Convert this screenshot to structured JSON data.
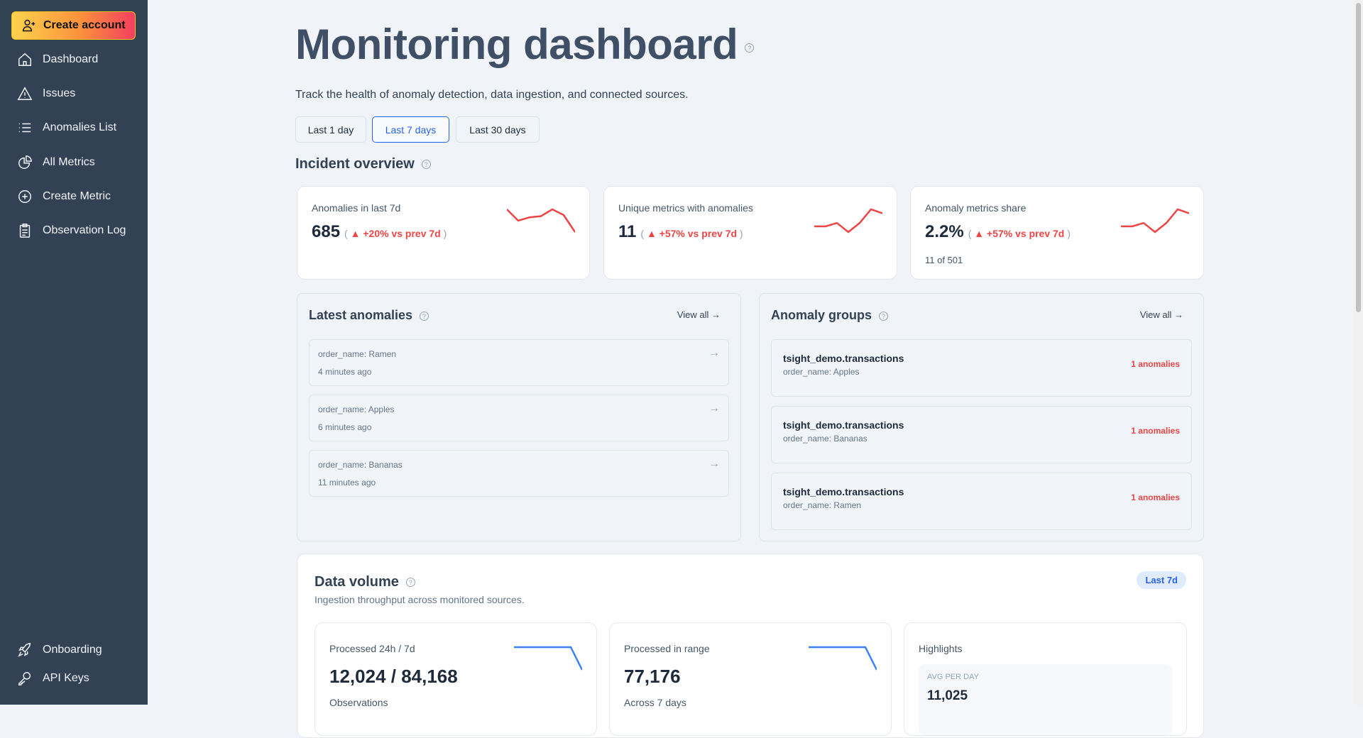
{
  "sidebar": {
    "create_account": "Create account",
    "items": [
      {
        "label": "Dashboard",
        "icon": "home-icon"
      },
      {
        "label": "Issues",
        "icon": "warning-icon"
      },
      {
        "label": "Anomalies List",
        "icon": "list-icon"
      },
      {
        "label": "All Metrics",
        "icon": "pie-chart-icon"
      },
      {
        "label": "Create Metric",
        "icon": "plus-circle-icon"
      },
      {
        "label": "Observation Log",
        "icon": "clipboard-icon"
      }
    ],
    "bottom": [
      {
        "label": "Onboarding",
        "icon": "rocket-icon"
      },
      {
        "label": "API Keys",
        "icon": "key-icon"
      }
    ]
  },
  "header": {
    "title": "Monitoring dashboard",
    "subtitle": "Track the health of anomaly detection, data ingestion, and connected sources.",
    "ranges": [
      "Last 1 day",
      "Last 7 days",
      "Last 30 days"
    ],
    "selected_range": "Last 7 days"
  },
  "incident": {
    "title": "Incident overview",
    "cards": [
      {
        "label": "Anomalies in last 7d",
        "value": "685",
        "change": "▲ +20% vs prev 7d",
        "extra": "",
        "spark": [
          5,
          3,
          3.6,
          3.8,
          5,
          4,
          1
        ]
      },
      {
        "label": "Unique metrics with anomalies",
        "value": "11",
        "change": "▲ +57% vs prev 7d",
        "extra": "",
        "spark": [
          2,
          2,
          2.6,
          1,
          2.6,
          5,
          4.3
        ]
      },
      {
        "label": "Anomaly metrics share",
        "value": "2.2%",
        "change": "▲ +57% vs prev 7d",
        "extra": "11 of 501",
        "spark": [
          2,
          2,
          2.6,
          1,
          2.6,
          5,
          4.3
        ]
      }
    ]
  },
  "latest": {
    "title": "Latest anomalies",
    "view_all": "View all →",
    "items": [
      {
        "name": "order_name: Ramen",
        "time": "4 minutes ago"
      },
      {
        "name": "order_name: Apples",
        "time": "6 minutes ago"
      },
      {
        "name": "order_name: Bananas",
        "time": "11 minutes ago"
      }
    ]
  },
  "groups": {
    "title": "Anomaly groups",
    "view_all": "View all →",
    "items": [
      {
        "table": "tsight_demo.transactions",
        "filter": "order_name: Apples",
        "count": "1 anomalies"
      },
      {
        "table": "tsight_demo.transactions",
        "filter": "order_name: Bananas",
        "count": "1 anomalies"
      },
      {
        "table": "tsight_demo.transactions",
        "filter": "order_name: Ramen",
        "count": "1 anomalies"
      }
    ]
  },
  "volume": {
    "title": "Data volume",
    "subtitle": "Ingestion throughput across monitored sources.",
    "badge": "Last 7d",
    "cards": [
      {
        "label": "Processed 24h / 7d",
        "value": "12,024 / 84,168",
        "caption": "Observations",
        "spark": [
          5,
          5,
          5,
          5,
          5,
          5,
          1
        ]
      },
      {
        "label": "Processed in range",
        "value": "77,176",
        "caption": "Across 7 days",
        "spark": [
          5,
          5,
          5,
          5,
          5,
          5,
          1
        ]
      }
    ],
    "highlights": {
      "label": "Highlights",
      "stat_label": "AVG PER DAY",
      "stat_value": "11,025"
    }
  },
  "colors": {
    "accent": "#2563eb",
    "danger": "#ef4444",
    "sidebar": "#334155"
  }
}
